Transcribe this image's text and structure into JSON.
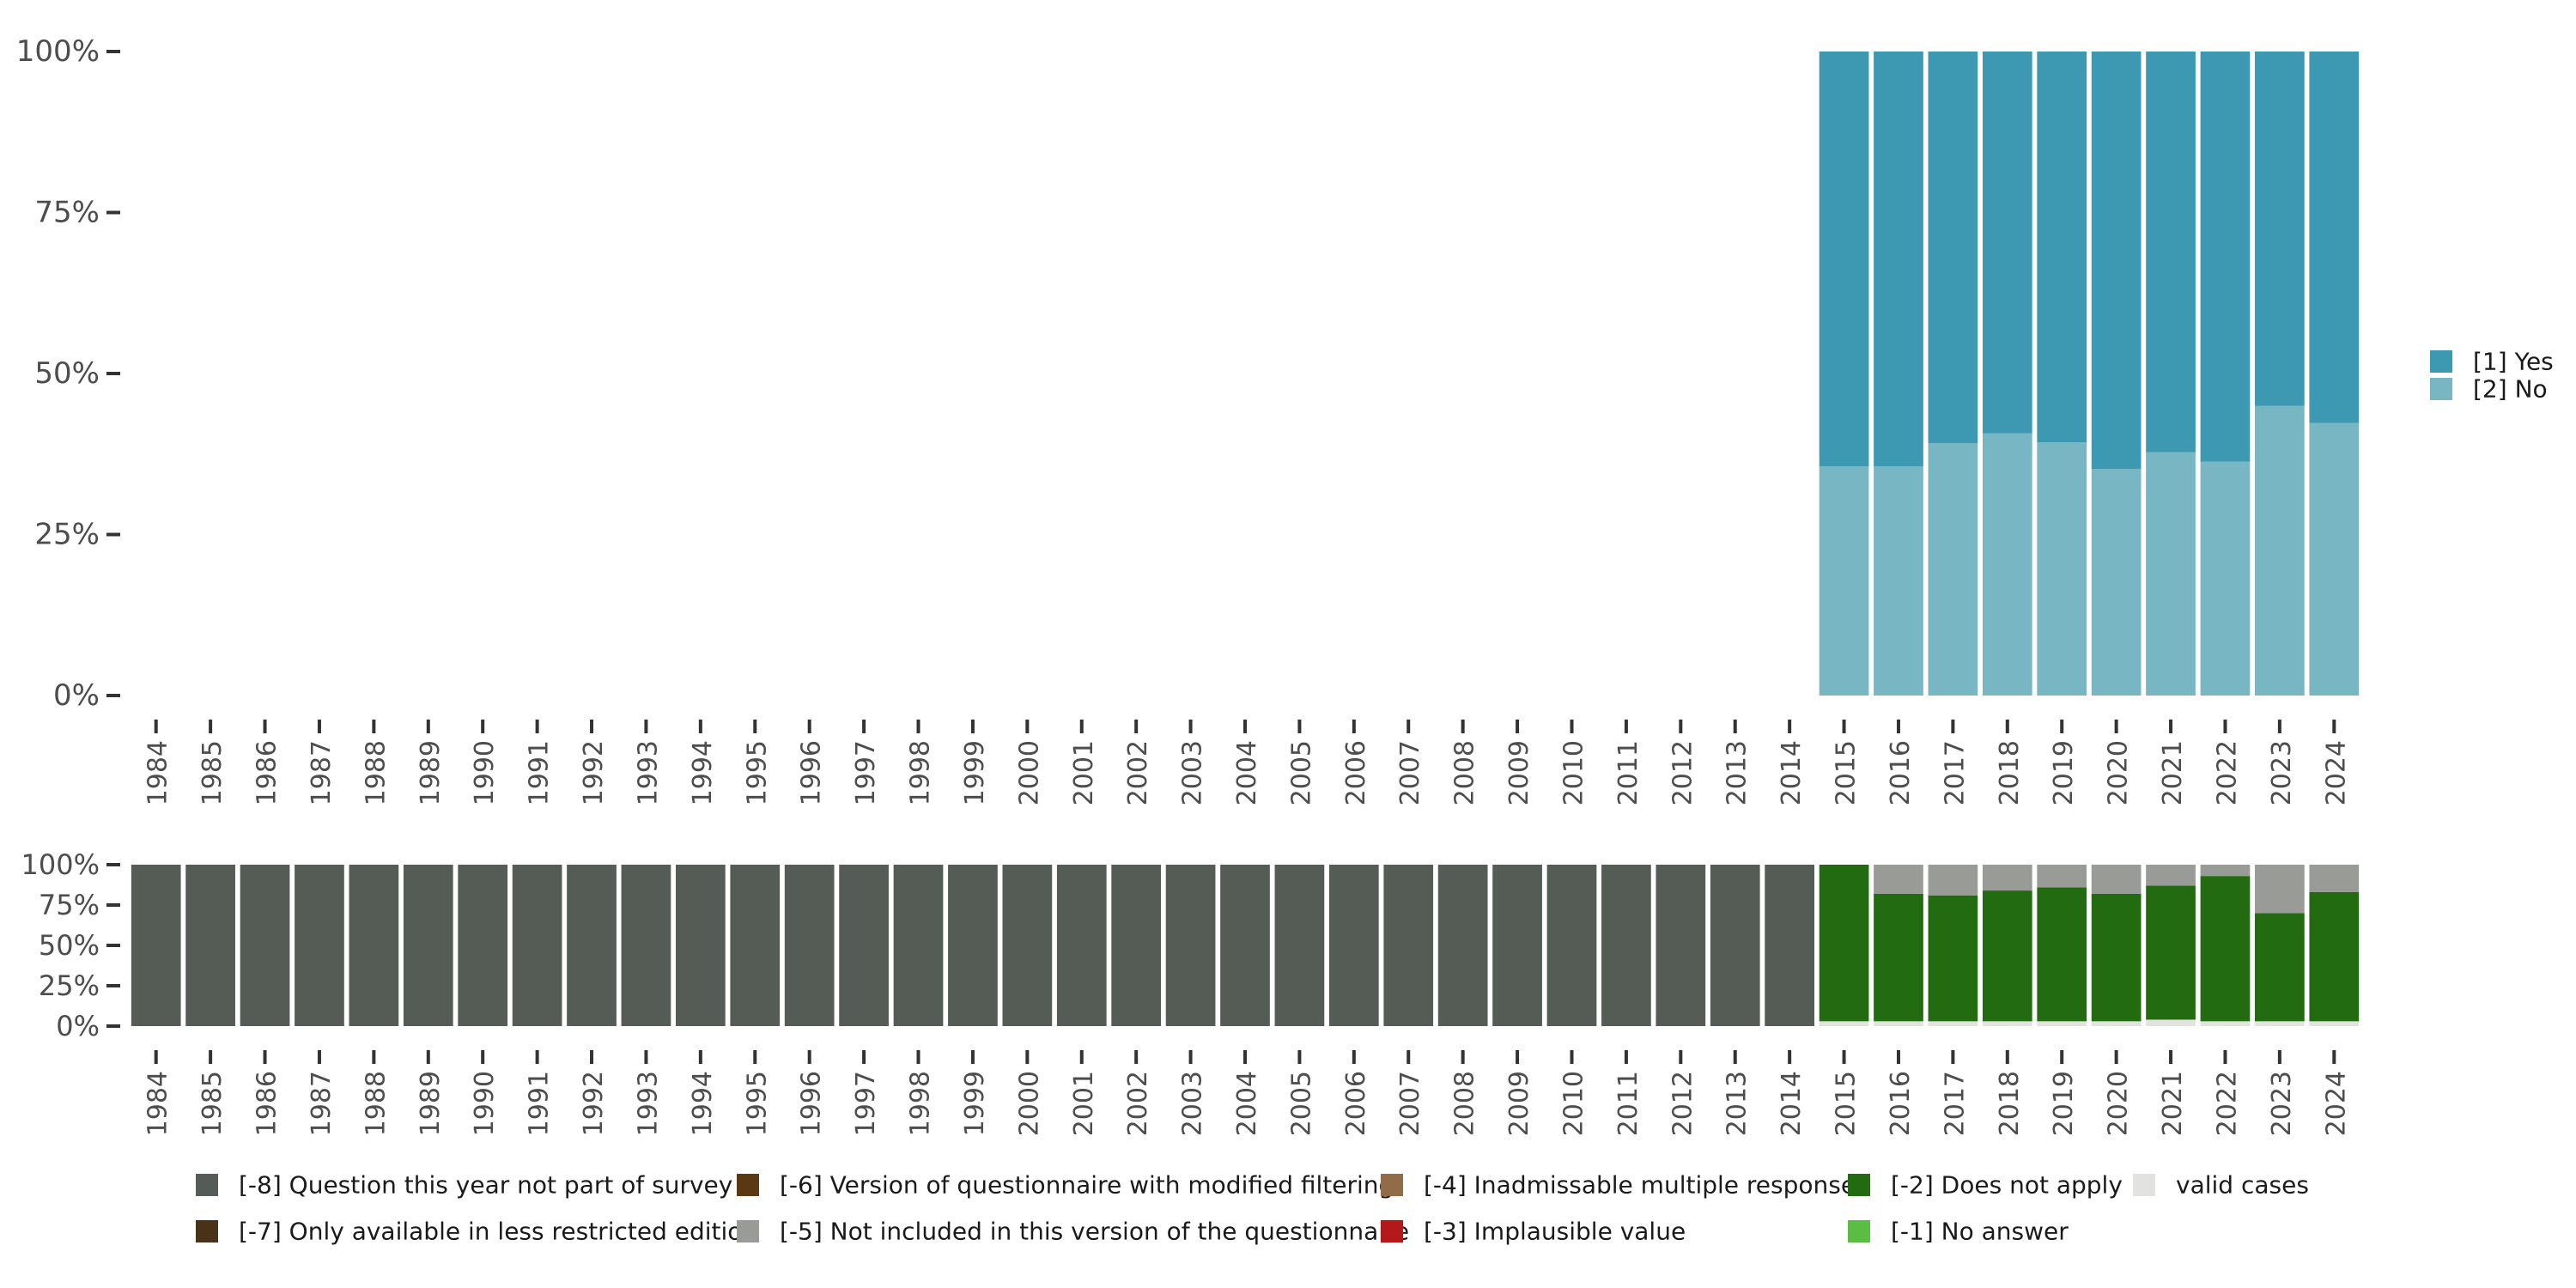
{
  "chart_data": [
    {
      "type": "bar",
      "stacked": true,
      "percent": true,
      "title": "",
      "xlabel": "",
      "ylabel": "",
      "ylim": [
        0,
        100
      ],
      "yticks": [
        "0%",
        "25%",
        "50%",
        "75%",
        "100%"
      ],
      "categories": [
        "1984",
        "1985",
        "1986",
        "1987",
        "1988",
        "1989",
        "1990",
        "1991",
        "1992",
        "1993",
        "1994",
        "1995",
        "1996",
        "1997",
        "1998",
        "1999",
        "2000",
        "2001",
        "2002",
        "2003",
        "2004",
        "2005",
        "2006",
        "2007",
        "2008",
        "2009",
        "2010",
        "2011",
        "2012",
        "2013",
        "2014",
        "2015",
        "2016",
        "2017",
        "2018",
        "2019",
        "2020",
        "2021",
        "2022",
        "2023",
        "2024"
      ],
      "series": [
        {
          "name": "[2] No",
          "color": "#78b6c4",
          "values": [
            null,
            null,
            null,
            null,
            null,
            null,
            null,
            null,
            null,
            null,
            null,
            null,
            null,
            null,
            null,
            null,
            null,
            null,
            null,
            null,
            null,
            null,
            null,
            null,
            null,
            null,
            null,
            null,
            null,
            null,
            null,
            35.6,
            35.6,
            39.2,
            40.7,
            39.3,
            35.2,
            37.8,
            36.3,
            45.0,
            42.3
          ]
        },
        {
          "name": "[1] Yes",
          "color": "#3c99b1",
          "values": [
            null,
            null,
            null,
            null,
            null,
            null,
            null,
            null,
            null,
            null,
            null,
            null,
            null,
            null,
            null,
            null,
            null,
            null,
            null,
            null,
            null,
            null,
            null,
            null,
            null,
            null,
            null,
            null,
            null,
            null,
            null,
            64.4,
            64.4,
            60.8,
            59.3,
            60.7,
            64.8,
            62.2,
            63.7,
            55.0,
            57.7
          ]
        }
      ],
      "legend": [
        "[1] Yes",
        "[2] No"
      ],
      "legend_position": "right"
    },
    {
      "type": "bar",
      "stacked": true,
      "percent": true,
      "title": "",
      "xlabel": "",
      "ylabel": "",
      "ylim": [
        0,
        100
      ],
      "yticks": [
        "0%",
        "25%",
        "50%",
        "75%",
        "100%"
      ],
      "categories": [
        "1984",
        "1985",
        "1986",
        "1987",
        "1988",
        "1989",
        "1990",
        "1991",
        "1992",
        "1993",
        "1994",
        "1995",
        "1996",
        "1997",
        "1998",
        "1999",
        "2000",
        "2001",
        "2002",
        "2003",
        "2004",
        "2005",
        "2006",
        "2007",
        "2008",
        "2009",
        "2010",
        "2011",
        "2012",
        "2013",
        "2014",
        "2015",
        "2016",
        "2017",
        "2018",
        "2019",
        "2020",
        "2021",
        "2022",
        "2023",
        "2024"
      ],
      "series": [
        {
          "name": "valid cases",
          "color": "#e2e3df",
          "values": [
            0,
            0,
            0,
            0,
            0,
            0,
            0,
            0,
            0,
            0,
            0,
            0,
            0,
            0,
            0,
            0,
            0,
            0,
            0,
            0,
            0,
            0,
            0,
            0,
            0,
            0,
            0,
            0,
            0,
            0,
            0,
            3,
            3,
            3,
            3,
            3,
            3,
            4,
            3,
            3,
            3
          ]
        },
        {
          "name": "[-2] Does not apply",
          "color": "#226b11",
          "values": [
            0,
            0,
            0,
            0,
            0,
            0,
            0,
            0,
            0,
            0,
            0,
            0,
            0,
            0,
            0,
            0,
            0,
            0,
            0,
            0,
            0,
            0,
            0,
            0,
            0,
            0,
            0,
            0,
            0,
            0,
            0,
            97,
            79,
            78,
            81,
            83,
            79,
            83,
            90,
            67,
            80
          ]
        },
        {
          "name": "[-5] Not included in this version of the questionnaire",
          "color": "#999b96",
          "values": [
            0,
            0,
            0,
            0,
            0,
            0,
            0,
            0,
            0,
            0,
            0,
            0,
            0,
            0,
            0,
            0,
            0,
            0,
            0,
            0,
            0,
            0,
            0,
            0,
            0,
            0,
            0,
            0,
            0,
            0,
            0,
            0,
            18,
            19,
            16,
            14,
            18,
            13,
            7,
            30,
            17
          ]
        },
        {
          "name": "[-8] Question this year not part of survey",
          "color": "#555b55",
          "values": [
            100,
            100,
            100,
            100,
            100,
            100,
            100,
            100,
            100,
            100,
            100,
            100,
            100,
            100,
            100,
            100,
            100,
            100,
            100,
            100,
            100,
            100,
            100,
            100,
            100,
            100,
            100,
            100,
            100,
            100,
            100,
            0,
            0,
            0,
            0,
            0,
            0,
            0,
            0,
            0,
            0
          ]
        }
      ],
      "legend": [
        {
          "name": "[-8] Question this year not part of survey",
          "color": "#555b55"
        },
        {
          "name": "[-7] Only available in less restricted edition",
          "color": "#4a3218"
        },
        {
          "name": "[-6] Version of questionnaire with modified filtering",
          "color": "#5b3814"
        },
        {
          "name": "[-5] Not included in this version of the questionnaire",
          "color": "#999b96"
        },
        {
          "name": "[-4] Inadmissable multiple response",
          "color": "#926b48"
        },
        {
          "name": "[-3] Implausible value",
          "color": "#b3191b"
        },
        {
          "name": "[-2] Does not apply",
          "color": "#226b11"
        },
        {
          "name": "[-1] No answer",
          "color": "#5bbd44"
        },
        {
          "name": "valid cases",
          "color": "#e2e3df"
        }
      ],
      "legend_position": "bottom"
    }
  ]
}
